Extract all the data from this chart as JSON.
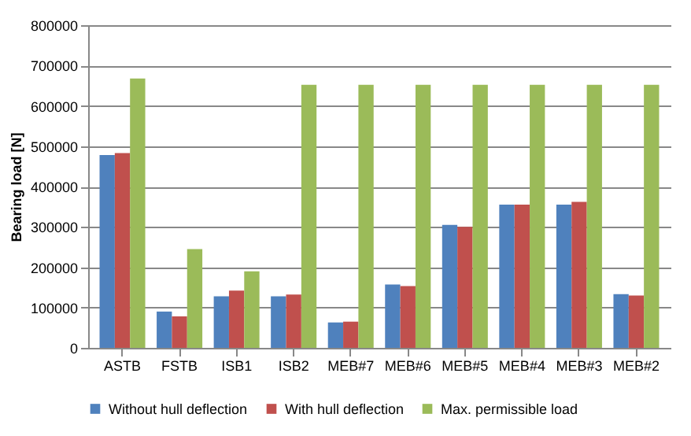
{
  "chart_data": {
    "type": "bar",
    "ylabel": "Bearing load [N]",
    "categories": [
      "ASTB",
      "FSTB",
      "ISB1",
      "ISB2",
      "MEB#7",
      "MEB#6",
      "MEB#5",
      "MEB#4",
      "MEB#3",
      "MEB#2"
    ],
    "series": [
      {
        "name": "Without hull deflection",
        "color": "#4f81bd",
        "values": [
          478000,
          90000,
          128000,
          128000,
          63000,
          157000,
          305000,
          355000,
          355000,
          133000
        ]
      },
      {
        "name": "With hull deflection",
        "color": "#c0504d",
        "values": [
          483000,
          78000,
          142000,
          132000,
          65000,
          153000,
          300000,
          355000,
          362000,
          130000
        ]
      },
      {
        "name": "Max. permissible load",
        "color": "#9bbb59",
        "values": [
          668000,
          245000,
          190000,
          652000,
          652000,
          652000,
          652000,
          652000,
          652000,
          652000
        ]
      }
    ],
    "ylim": [
      0,
      800000
    ],
    "yticks": [
      0,
      100000,
      200000,
      300000,
      400000,
      500000,
      600000,
      700000,
      800000
    ],
    "grid": "y",
    "legend": "bottom"
  }
}
